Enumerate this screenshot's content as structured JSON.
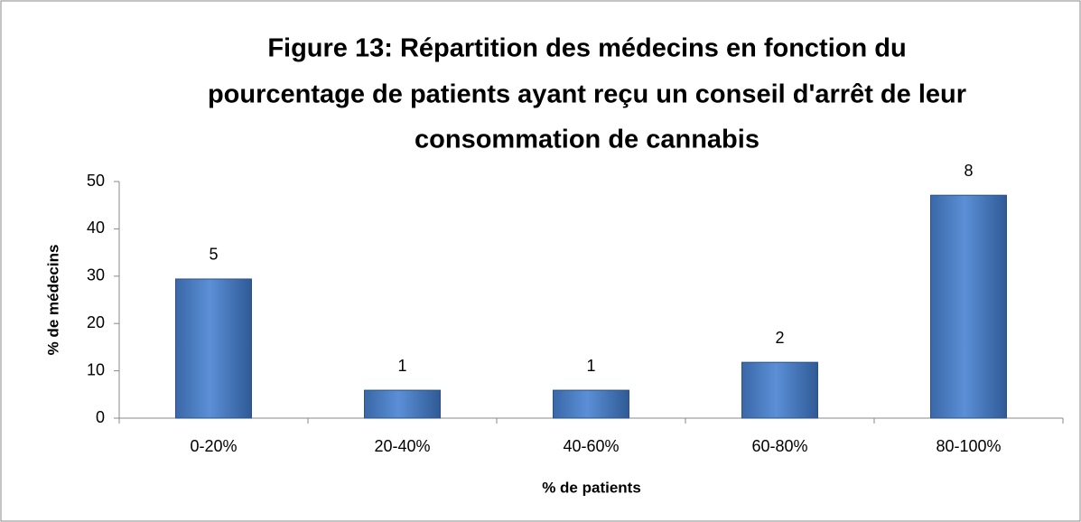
{
  "chart_data": {
    "type": "bar",
    "title": [
      "Figure 13: Répartition des médecins en fonction du",
      "pourcentage de patients ayant reçu un conseil d'arrêt de leur",
      "consommation de cannabis"
    ],
    "x_label": "% de patients",
    "y_label": "% de médecins",
    "categories": [
      "0-20%",
      "20-40%",
      "40-60%",
      "60-80%",
      "80-100%"
    ],
    "values": [
      29.4,
      5.9,
      5.9,
      11.8,
      47.1
    ],
    "data_labels": [
      5,
      1,
      1,
      2,
      8
    ],
    "color": "#4a7ebb",
    "ylim": [
      0,
      50
    ],
    "yticks": [
      0,
      10,
      20,
      30,
      40,
      50
    ],
    "grid": false
  }
}
